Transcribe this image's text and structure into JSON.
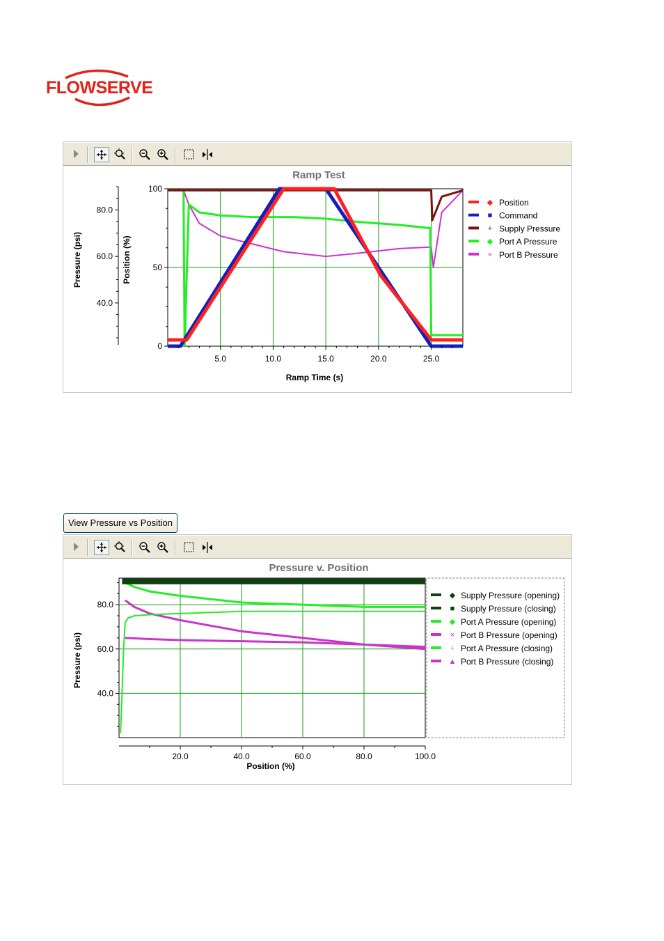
{
  "brand": {
    "logo_text": "FLOWSERVE"
  },
  "toolbar_icons": [
    "play-arrow-icon",
    "pan-icon",
    "zoom-fit-icon",
    "zoom-out-icon",
    "zoom-in-icon",
    "select-box-icon",
    "cursor-split-icon"
  ],
  "ramp_chart": {
    "title": "Ramp Test",
    "xlabel": "Ramp Time (s)",
    "ylabel_left": "Pressure (psi)",
    "ylabel_right": "Position (%)",
    "x_ticks": [
      "5.0",
      "10.0",
      "15.0",
      "20.0",
      "25.0"
    ],
    "y_ticks_pressure": [
      "40.0",
      "60.0",
      "80.0"
    ],
    "y_ticks_position": [
      "0",
      "50",
      "100"
    ],
    "legend": [
      {
        "label": "Position",
        "color": "#ff2020",
        "marker": "◆"
      },
      {
        "label": "Command",
        "color": "#1020c0",
        "marker": "■"
      },
      {
        "label": "Supply Pressure",
        "color": "#801010",
        "marker": "+"
      },
      {
        "label": "Port A Pressure",
        "color": "#22ee22",
        "marker": "◆"
      },
      {
        "label": "Port B Pressure",
        "color": "#cc33cc",
        "marker": "×"
      }
    ]
  },
  "view_button": {
    "label": "View Pressure vs Position"
  },
  "pv_chart": {
    "title": "Pressure v. Position",
    "xlabel": "Position (%)",
    "ylabel": "Pressure (psi)",
    "x_ticks": [
      "20.0",
      "40.0",
      "60.0",
      "80.0",
      "100.0"
    ],
    "y_ticks": [
      "40.0",
      "60.0",
      "80.0"
    ],
    "legend": [
      {
        "label": "Supply Pressure (opening)",
        "color": "#104010",
        "marker": "◆"
      },
      {
        "label": "Supply Pressure (closing)",
        "color": "#104010",
        "marker": "■"
      },
      {
        "label": "Port A Pressure (opening)",
        "color": "#22ee22",
        "marker": "◆"
      },
      {
        "label": "Port B Pressure (opening)",
        "color": "#cc33cc",
        "marker": "×"
      },
      {
        "label": "Port A Pressure (closing)",
        "color": "#22ee22",
        "marker": "+"
      },
      {
        "label": "Port B Pressure (closing)",
        "color": "#cc33cc",
        "marker": "▲"
      }
    ]
  },
  "chart_data": [
    {
      "type": "line",
      "title": "Ramp Test",
      "xlabel": "Ramp Time (s)",
      "ylabel": "Position (%)",
      "xlim": [
        0,
        28
      ],
      "ylim": [
        0,
        100
      ],
      "series": [
        {
          "name": "Position",
          "x": [
            0,
            1.8,
            11,
            15.8,
            20.2,
            25,
            28
          ],
          "y": [
            4,
            4,
            100,
            100,
            45,
            4,
            4
          ]
        },
        {
          "name": "Command",
          "x": [
            0,
            1.2,
            10.6,
            15,
            25,
            28
          ],
          "y": [
            0,
            0,
            100,
            100,
            0,
            0
          ]
        },
        {
          "name": "Supply Pressure",
          "x": [
            0,
            25,
            25.1,
            26,
            28
          ],
          "y": [
            99,
            99,
            80,
            95,
            99
          ]
        },
        {
          "name": "Port A Pressure",
          "x": [
            0,
            1.5,
            1.6,
            2,
            3,
            5,
            8,
            12,
            15,
            18,
            22,
            24.9,
            25,
            28
          ],
          "y": [
            99,
            99,
            0,
            90,
            85,
            83,
            82,
            82,
            81,
            79,
            77,
            75,
            7,
            7
          ]
        },
        {
          "name": "Port B Pressure",
          "x": [
            0,
            1.5,
            2,
            3,
            5,
            8,
            11,
            15,
            18,
            22,
            25,
            25.2,
            26,
            28
          ],
          "y": [
            99,
            99,
            90,
            78,
            70,
            65,
            60,
            57,
            59,
            62,
            63,
            50,
            85,
            99
          ]
        }
      ]
    },
    {
      "type": "scatter",
      "title": "Pressure v. Position",
      "xlabel": "Position (%)",
      "ylabel": "Pressure (psi)",
      "xlim": [
        0,
        100
      ],
      "ylim": [
        20,
        92
      ],
      "series": [
        {
          "name": "Supply Pressure (opening)",
          "x": [
            1,
            10,
            20,
            40,
            60,
            80,
            100
          ],
          "y": [
            90,
            90,
            90,
            90,
            90,
            90,
            90
          ]
        },
        {
          "name": "Supply Pressure (closing)",
          "x": [
            1,
            10,
            20,
            40,
            60,
            80,
            100
          ],
          "y": [
            91,
            91,
            91,
            91,
            91,
            91,
            91
          ]
        },
        {
          "name": "Port A Pressure (opening)",
          "x": [
            2,
            5,
            10,
            20,
            40,
            60,
            80,
            100
          ],
          "y": [
            90,
            88,
            86,
            84,
            81,
            80,
            79,
            79
          ]
        },
        {
          "name": "Port B Pressure (opening)",
          "x": [
            2,
            5,
            10,
            20,
            40,
            60,
            80,
            100
          ],
          "y": [
            82,
            79,
            76,
            73,
            68,
            65,
            62,
            60
          ]
        },
        {
          "name": "Port A Pressure (closing)",
          "x": [
            0.5,
            1,
            1.5,
            2,
            3,
            5,
            10,
            20,
            40,
            60,
            80,
            100
          ],
          "y": [
            22,
            40,
            60,
            72,
            74,
            75,
            75.5,
            76,
            77,
            77,
            77,
            77
          ]
        },
        {
          "name": "Port B Pressure (closing)",
          "x": [
            2,
            10,
            20,
            40,
            60,
            80,
            100
          ],
          "y": [
            65,
            64.5,
            64,
            63.5,
            63,
            62,
            61
          ]
        }
      ]
    }
  ]
}
